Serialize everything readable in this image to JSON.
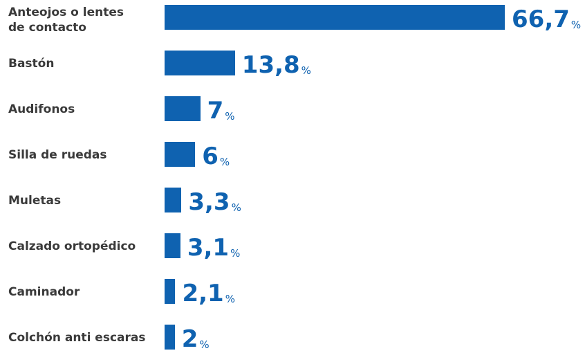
{
  "colors": {
    "bar": "#0f62b0",
    "label": "#3a3a3a",
    "value": "#0f62b0"
  },
  "chart_data": {
    "type": "bar",
    "orientation": "horizontal",
    "grid": false,
    "legend": "none",
    "xlim": [
      0,
      66.7
    ],
    "unit": "%",
    "categories": [
      "Anteojos o lentes\nde contacto",
      "Bastón",
      "Audifonos",
      "Silla de ruedas",
      "Muletas",
      "Calzado ortopédico",
      "Caminador",
      "Colchón anti escaras"
    ],
    "values": [
      66.7,
      13.8,
      7,
      6,
      3.3,
      3.1,
      2.1,
      2
    ],
    "value_labels": [
      "66,7",
      "13,8",
      "7",
      "6",
      "3,3",
      "3,1",
      "2,1",
      "2"
    ]
  }
}
